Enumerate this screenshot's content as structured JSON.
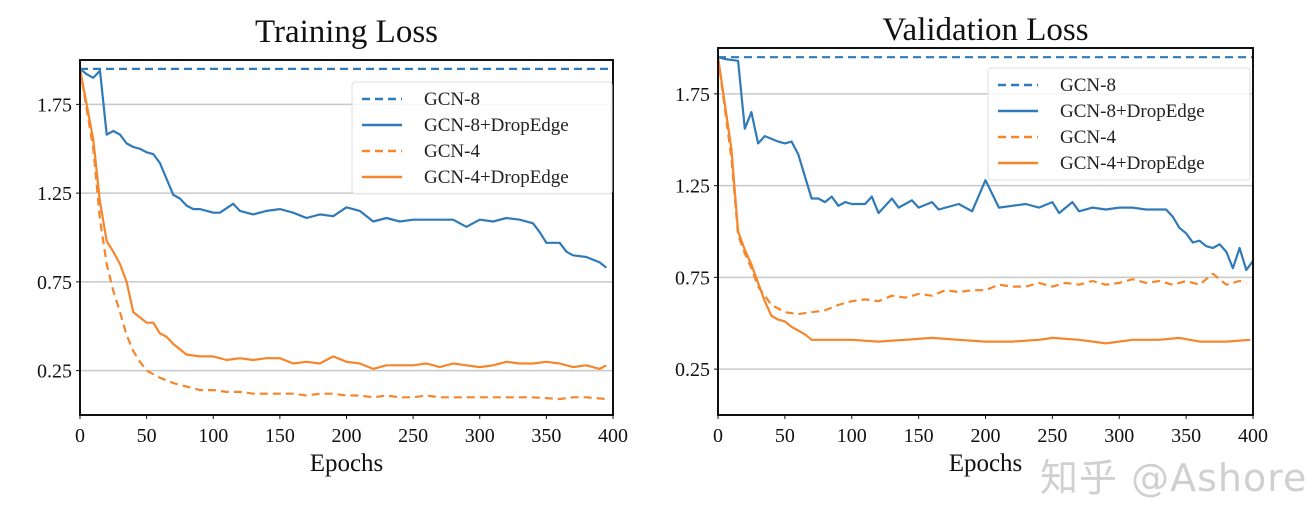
{
  "colors": {
    "blue": "#2f7ab8",
    "orange": "#f5862b",
    "grid": "#c8c8c8"
  },
  "watermark": "知乎 @Ashore",
  "chart_data": [
    {
      "type": "line",
      "title": "Training Loss",
      "xlabel": "Epochs",
      "ylabel": "",
      "xlim": [
        0,
        400
      ],
      "ylim": [
        0,
        2.0
      ],
      "xticks": [
        0,
        50,
        100,
        150,
        200,
        250,
        300,
        350,
        400
      ],
      "yticks": [
        0.25,
        0.75,
        1.25,
        1.75
      ],
      "ytick_labels": [
        "0.25",
        "0.75",
        "1.25",
        "1.75"
      ],
      "grid": "horizontal",
      "legend": "top-right",
      "series": [
        {
          "name": "GCN-8",
          "color": "blue",
          "style": "dashed",
          "x": [
            0,
            400
          ],
          "y": [
            1.95,
            1.95
          ]
        },
        {
          "name": "GCN-8+DropEdge",
          "color": "blue",
          "style": "solid",
          "x": [
            0,
            5,
            10,
            15,
            20,
            25,
            30,
            35,
            40,
            45,
            50,
            55,
            60,
            65,
            70,
            75,
            80,
            85,
            90,
            100,
            105,
            115,
            120,
            130,
            140,
            150,
            160,
            170,
            180,
            190,
            200,
            210,
            220,
            230,
            240,
            250,
            260,
            270,
            280,
            290,
            300,
            310,
            320,
            330,
            340,
            345,
            350,
            360,
            365,
            370,
            380,
            390,
            395
          ],
          "y": [
            1.95,
            1.92,
            1.9,
            1.94,
            1.58,
            1.6,
            1.58,
            1.53,
            1.51,
            1.5,
            1.48,
            1.47,
            1.42,
            1.33,
            1.24,
            1.22,
            1.18,
            1.16,
            1.16,
            1.14,
            1.14,
            1.19,
            1.15,
            1.13,
            1.15,
            1.16,
            1.14,
            1.11,
            1.13,
            1.12,
            1.17,
            1.15,
            1.09,
            1.11,
            1.09,
            1.1,
            1.1,
            1.1,
            1.1,
            1.06,
            1.1,
            1.09,
            1.11,
            1.1,
            1.08,
            1.03,
            0.97,
            0.97,
            0.92,
            0.9,
            0.89,
            0.86,
            0.83
          ]
        },
        {
          "name": "GCN-4",
          "color": "orange",
          "style": "dashed",
          "x": [
            0,
            10,
            15,
            20,
            25,
            30,
            35,
            40,
            45,
            50,
            60,
            70,
            80,
            90,
            100,
            110,
            120,
            130,
            140,
            150,
            160,
            170,
            180,
            190,
            200,
            210,
            220,
            230,
            240,
            250,
            260,
            270,
            280,
            290,
            300,
            320,
            340,
            360,
            370,
            380,
            395
          ],
          "y": [
            1.95,
            1.5,
            1.1,
            0.85,
            0.7,
            0.58,
            0.45,
            0.36,
            0.3,
            0.25,
            0.21,
            0.18,
            0.16,
            0.14,
            0.14,
            0.13,
            0.13,
            0.12,
            0.12,
            0.12,
            0.12,
            0.11,
            0.12,
            0.12,
            0.11,
            0.11,
            0.1,
            0.11,
            0.1,
            0.1,
            0.11,
            0.1,
            0.1,
            0.1,
            0.1,
            0.1,
            0.1,
            0.09,
            0.1,
            0.1,
            0.09
          ]
        },
        {
          "name": "GCN-4+DropEdge",
          "color": "orange",
          "style": "solid",
          "x": [
            0,
            10,
            15,
            20,
            25,
            30,
            35,
            40,
            50,
            55,
            60,
            65,
            70,
            80,
            90,
            100,
            110,
            120,
            130,
            140,
            150,
            160,
            170,
            180,
            190,
            200,
            210,
            220,
            230,
            240,
            250,
            260,
            270,
            280,
            290,
            300,
            310,
            320,
            330,
            340,
            350,
            360,
            370,
            380,
            390,
            395
          ],
          "y": [
            1.95,
            1.55,
            1.2,
            0.98,
            0.92,
            0.85,
            0.75,
            0.58,
            0.52,
            0.52,
            0.46,
            0.44,
            0.4,
            0.34,
            0.33,
            0.33,
            0.31,
            0.32,
            0.31,
            0.32,
            0.32,
            0.29,
            0.3,
            0.29,
            0.33,
            0.3,
            0.29,
            0.26,
            0.28,
            0.28,
            0.28,
            0.29,
            0.27,
            0.29,
            0.28,
            0.27,
            0.28,
            0.3,
            0.29,
            0.29,
            0.3,
            0.29,
            0.27,
            0.28,
            0.26,
            0.28
          ]
        }
      ]
    },
    {
      "type": "line",
      "title": "Validation Loss",
      "xlabel": "Epochs",
      "ylabel": "",
      "xlim": [
        0,
        400
      ],
      "ylim": [
        0,
        2.0
      ],
      "xticks": [
        0,
        50,
        100,
        150,
        200,
        250,
        300,
        350,
        400
      ],
      "yticks": [
        0.25,
        0.75,
        1.25,
        1.75
      ],
      "ytick_labels": [
        "0.25",
        "0.75",
        "1.25",
        "1.75"
      ],
      "grid": "horizontal",
      "legend": "top-right",
      "series": [
        {
          "name": "GCN-8",
          "color": "blue",
          "style": "dashed",
          "x": [
            0,
            400
          ],
          "y": [
            1.95,
            1.95
          ]
        },
        {
          "name": "GCN-8+DropEdge",
          "color": "blue",
          "style": "solid",
          "x": [
            0,
            5,
            15,
            20,
            25,
            30,
            35,
            45,
            50,
            55,
            60,
            70,
            75,
            80,
            85,
            90,
            95,
            100,
            110,
            115,
            120,
            130,
            135,
            145,
            150,
            160,
            165,
            180,
            190,
            200,
            210,
            220,
            230,
            240,
            250,
            255,
            265,
            270,
            280,
            290,
            300,
            310,
            320,
            330,
            335,
            340,
            345,
            350,
            355,
            360,
            365,
            370,
            375,
            380,
            385,
            390,
            395,
            400
          ],
          "y": [
            1.95,
            1.94,
            1.93,
            1.56,
            1.65,
            1.48,
            1.52,
            1.49,
            1.48,
            1.49,
            1.42,
            1.18,
            1.18,
            1.16,
            1.19,
            1.14,
            1.16,
            1.15,
            1.15,
            1.19,
            1.1,
            1.18,
            1.13,
            1.17,
            1.13,
            1.16,
            1.12,
            1.15,
            1.11,
            1.28,
            1.13,
            1.14,
            1.15,
            1.13,
            1.16,
            1.1,
            1.16,
            1.11,
            1.13,
            1.12,
            1.13,
            1.13,
            1.12,
            1.12,
            1.12,
            1.08,
            1.02,
            0.99,
            0.94,
            0.95,
            0.92,
            0.91,
            0.93,
            0.89,
            0.8,
            0.91,
            0.79,
            0.84
          ]
        },
        {
          "name": "GCN-4",
          "color": "orange",
          "style": "dashed",
          "x": [
            0,
            10,
            15,
            20,
            25,
            30,
            40,
            50,
            60,
            70,
            80,
            90,
            100,
            110,
            120,
            130,
            140,
            150,
            160,
            170,
            180,
            190,
            200,
            210,
            220,
            230,
            240,
            250,
            260,
            270,
            280,
            290,
            300,
            310,
            320,
            330,
            340,
            350,
            360,
            370,
            380,
            390,
            395
          ],
          "y": [
            1.95,
            1.4,
            0.98,
            0.88,
            0.8,
            0.7,
            0.6,
            0.56,
            0.55,
            0.56,
            0.57,
            0.6,
            0.62,
            0.63,
            0.62,
            0.65,
            0.64,
            0.66,
            0.65,
            0.68,
            0.67,
            0.68,
            0.68,
            0.71,
            0.7,
            0.7,
            0.72,
            0.7,
            0.72,
            0.71,
            0.73,
            0.71,
            0.72,
            0.74,
            0.72,
            0.73,
            0.71,
            0.73,
            0.71,
            0.77,
            0.71,
            0.73,
            0.72
          ]
        },
        {
          "name": "GCN-4+DropEdge",
          "color": "orange",
          "style": "solid",
          "x": [
            0,
            10,
            15,
            20,
            25,
            30,
            35,
            40,
            45,
            50,
            55,
            60,
            65,
            70,
            80,
            90,
            100,
            120,
            140,
            160,
            180,
            200,
            220,
            240,
            250,
            270,
            290,
            310,
            330,
            345,
            360,
            380,
            398
          ],
          "y": [
            1.95,
            1.45,
            1.0,
            0.9,
            0.82,
            0.72,
            0.62,
            0.54,
            0.52,
            0.51,
            0.48,
            0.46,
            0.44,
            0.41,
            0.41,
            0.41,
            0.41,
            0.4,
            0.41,
            0.42,
            0.41,
            0.4,
            0.4,
            0.41,
            0.42,
            0.41,
            0.39,
            0.41,
            0.41,
            0.42,
            0.4,
            0.4,
            0.41
          ]
        }
      ]
    }
  ]
}
